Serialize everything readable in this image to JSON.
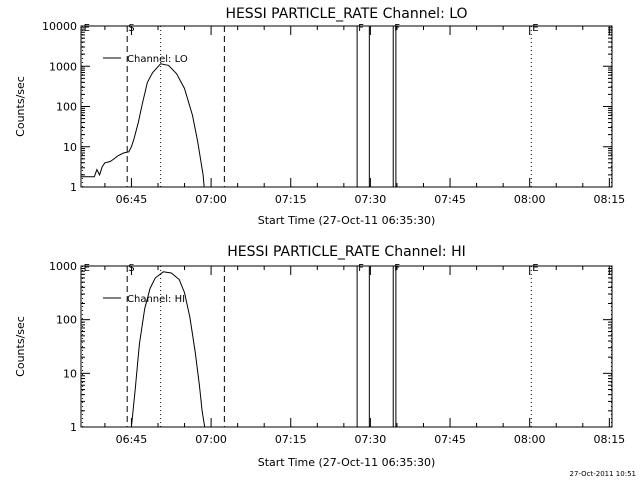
{
  "chart_data": [
    {
      "type": "line",
      "title": "HESSI PARTICLE_RATE Channel: LO",
      "xlabel": "Start Time (27-Oct-11 06:35:30)",
      "ylabel": "Counts/sec",
      "yscale": "log",
      "ylim": [
        1,
        10000
      ],
      "xlim": [
        0,
        100
      ],
      "x_units": "minutes after 06:35:30",
      "x_ticks": [
        {
          "x": 9.5,
          "label": "06:45"
        },
        {
          "x": 24.5,
          "label": "07:00"
        },
        {
          "x": 39.5,
          "label": "07:15"
        },
        {
          "x": 54.5,
          "label": "07:30"
        },
        {
          "x": 69.5,
          "label": "07:45"
        },
        {
          "x": 84.5,
          "label": "08:00"
        },
        {
          "x": 99.5,
          "label": "08:15"
        }
      ],
      "y_ticks": [
        {
          "y": 1,
          "label": "1"
        },
        {
          "y": 10,
          "label": "10"
        },
        {
          "y": 100,
          "label": "100"
        },
        {
          "y": 1000,
          "label": "1000"
        },
        {
          "y": 10000,
          "label": "10000"
        }
      ],
      "legend": {
        "label": "Channel: LO",
        "placement": "top-left"
      },
      "series": [
        {
          "name": "Channel: LO",
          "x": [
            0,
            2.5,
            3.0,
            3.5,
            4.0,
            4.5,
            5.5,
            6.0,
            7.0,
            8.0,
            9.0,
            9.5,
            10.0,
            10.8,
            11.5,
            12.5,
            13.5,
            15.0,
            16.5,
            18.0,
            19.5,
            21.0,
            22.0,
            22.5,
            23.0,
            23.2
          ],
          "y": [
            1.8,
            1.8,
            2.7,
            2.0,
            3.2,
            4.0,
            4.3,
            4.8,
            6.0,
            7.0,
            7.5,
            10.0,
            16,
            40,
            110,
            400,
            700,
            1150,
            1050,
            650,
            280,
            60,
            13,
            5,
            2,
            1
          ]
        }
      ],
      "vlines": [
        {
          "x": 0.3,
          "style": "dotted",
          "label": "E"
        },
        {
          "x": 8.7,
          "style": "dashed",
          "label": "S"
        },
        {
          "x": 15.0,
          "style": "dotted",
          "label": ""
        },
        {
          "x": 27.0,
          "style": "dashed",
          "label": ""
        },
        {
          "x": 52.0,
          "style": "solid",
          "label": "F"
        },
        {
          "x": 54.3,
          "style": "solid",
          "label": ""
        },
        {
          "x": 58.8,
          "style": "solid",
          "label": "F"
        },
        {
          "x": 59.3,
          "style": "solid",
          "label": ""
        },
        {
          "x": 84.8,
          "style": "dotted",
          "label": "E"
        },
        {
          "x": 99.9,
          "style": "dotted",
          "label": ""
        }
      ]
    },
    {
      "type": "line",
      "title": "HESSI PARTICLE_RATE Channel: HI",
      "xlabel": "Start Time (27-Oct-11 06:35:30)",
      "ylabel": "Counts/sec",
      "yscale": "log",
      "ylim": [
        1,
        1000
      ],
      "xlim": [
        0,
        100
      ],
      "x_units": "minutes after 06:35:30",
      "x_ticks": [
        {
          "x": 9.5,
          "label": "06:45"
        },
        {
          "x": 24.5,
          "label": "07:00"
        },
        {
          "x": 39.5,
          "label": "07:15"
        },
        {
          "x": 54.5,
          "label": "07:30"
        },
        {
          "x": 69.5,
          "label": "07:45"
        },
        {
          "x": 84.5,
          "label": "08:00"
        },
        {
          "x": 99.5,
          "label": "08:15"
        }
      ],
      "y_ticks": [
        {
          "y": 1,
          "label": "1"
        },
        {
          "y": 10,
          "label": "10"
        },
        {
          "y": 100,
          "label": "100"
        },
        {
          "y": 1000,
          "label": "1000"
        }
      ],
      "legend": {
        "label": "Channel: HI",
        "placement": "top-left"
      },
      "series": [
        {
          "name": "Channel: HI",
          "x": [
            9.5,
            10.2,
            11.0,
            12.0,
            13.0,
            14.0,
            15.5,
            17.0,
            18.5,
            19.5,
            20.5,
            21.5,
            22.3,
            22.8,
            23.3
          ],
          "y": [
            1,
            5,
            35,
            160,
            380,
            600,
            780,
            740,
            560,
            320,
            110,
            25,
            6,
            2,
            1
          ]
        }
      ],
      "vlines": [
        {
          "x": 0.3,
          "style": "dotted",
          "label": "E"
        },
        {
          "x": 8.7,
          "style": "dashed",
          "label": "S"
        },
        {
          "x": 15.0,
          "style": "dotted",
          "label": ""
        },
        {
          "x": 27.0,
          "style": "dashed",
          "label": ""
        },
        {
          "x": 52.0,
          "style": "solid",
          "label": "F"
        },
        {
          "x": 54.3,
          "style": "solid",
          "label": ""
        },
        {
          "x": 58.8,
          "style": "solid",
          "label": "F"
        },
        {
          "x": 59.3,
          "style": "solid",
          "label": ""
        },
        {
          "x": 84.8,
          "style": "dotted",
          "label": "E"
        },
        {
          "x": 99.9,
          "style": "dotted",
          "label": ""
        }
      ]
    }
  ],
  "footer": {
    "timestamp": "27-Oct-2011 10:51"
  }
}
